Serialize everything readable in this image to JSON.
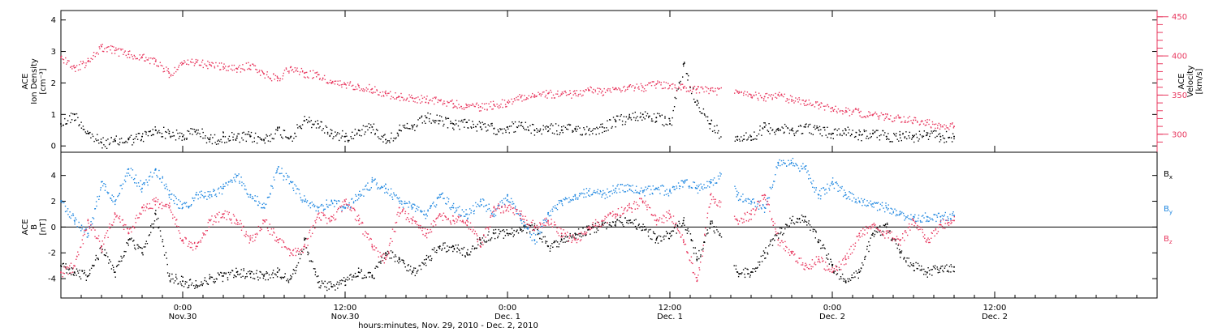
{
  "chart_data": [
    {
      "type": "scatter",
      "panel": "ion-density-velocity",
      "title": "",
      "ylabel_lines": [
        "ACE",
        "Ion Density",
        "[cm⁻³]"
      ],
      "ylim": [
        -0.2,
        4.3
      ],
      "yticks": [
        0,
        1,
        2,
        3,
        4
      ],
      "y2label_lines": [
        "ACE",
        "Velocity",
        "[km/s]"
      ],
      "y2lim": [
        277,
        458
      ],
      "y2ticks": [
        300,
        350,
        400,
        450
      ],
      "grid": false,
      "series": [
        {
          "name": "",
          "color": "#000000",
          "axis": "left",
          "x": [
            0,
            2,
            4,
            6,
            8,
            10,
            12,
            14,
            16,
            18,
            20,
            22,
            24,
            26,
            28,
            30,
            32,
            34,
            36,
            38,
            40,
            42,
            44,
            46,
            48,
            50,
            52,
            54,
            56,
            58,
            60,
            62,
            64,
            66,
            68,
            70,
            72,
            74,
            76,
            78,
            80,
            82,
            84,
            86,
            88,
            90,
            92,
            94,
            96,
            98,
            100,
            102,
            104,
            106,
            108,
            110,
            112,
            114,
            116,
            118,
            120,
            122,
            124,
            126,
            128,
            130,
            132
          ],
          "y": [
            0.7,
            1.0,
            0.4,
            0.1,
            0.15,
            0.2,
            0.3,
            0.5,
            0.4,
            0.3,
            0.5,
            0.2,
            0.3,
            0.25,
            0.3,
            0.2,
            0.5,
            0.3,
            0.8,
            0.7,
            0.4,
            0.3,
            0.5,
            0.6,
            0.2,
            0.5,
            0.6,
            0.9,
            0.8,
            0.7,
            0.75,
            0.6,
            0.55,
            0.6,
            0.65,
            0.5,
            0.6,
            0.5,
            0.55,
            0.5,
            0.6,
            0.8,
            0.9,
            1.0,
            0.9,
            0.7,
            2.6,
            1.3,
            0.7,
            0.3,
            0.3,
            0.3,
            0.6,
            0.55,
            0.5,
            0.6,
            0.5,
            0.4,
            0.5,
            0.35,
            0.4,
            0.3,
            0.35,
            0.3,
            0.35,
            0.3,
            0.3
          ]
        },
        {
          "name": "",
          "color": "#e8385f",
          "axis": "right",
          "x": [
            0,
            2,
            4,
            6,
            8,
            10,
            12,
            14,
            16,
            18,
            20,
            22,
            24,
            26,
            28,
            30,
            32,
            34,
            36,
            38,
            40,
            42,
            44,
            46,
            48,
            50,
            52,
            54,
            56,
            58,
            60,
            62,
            64,
            66,
            68,
            70,
            72,
            74,
            76,
            78,
            80,
            82,
            84,
            86,
            88,
            90,
            92,
            94,
            96,
            98,
            100,
            102,
            104,
            106,
            108,
            110,
            112,
            114,
            116,
            118,
            120,
            122,
            124,
            126,
            128,
            130,
            132
          ],
          "y": [
            398,
            385,
            393,
            412,
            407,
            402,
            398,
            393,
            378,
            390,
            392,
            389,
            386,
            384,
            388,
            377,
            372,
            386,
            378,
            376,
            365,
            364,
            362,
            358,
            352,
            348,
            346,
            345,
            343,
            339,
            337,
            335,
            338,
            341,
            348,
            350,
            352,
            351,
            352,
            357,
            355,
            359,
            361,
            360,
            364,
            362,
            360,
            358,
            356,
            355,
            354,
            350,
            348,
            350,
            344,
            342,
            337,
            334,
            330,
            328,
            325,
            322,
            321,
            318,
            315,
            312,
            310
          ]
        }
      ]
    },
    {
      "type": "scatter",
      "panel": "magnetic-field",
      "title": "",
      "ylabel_lines": [
        "ACE",
        "B",
        "[nT]"
      ],
      "ylim": [
        -5.5,
        5.8
      ],
      "yticks": [
        -4,
        -2,
        0,
        2,
        4
      ],
      "xlabel": "hours:minutes, Nov. 29, 2010 - Dec. 2, 2010",
      "xlim": [
        0,
        162
      ],
      "xticks": [
        {
          "x": 18,
          "labels": [
            "0:00",
            "Nov.30"
          ]
        },
        {
          "x": 42,
          "labels": [
            "12:00",
            "Nov.30"
          ]
        },
        {
          "x": 66,
          "labels": [
            "0:00",
            "Dec. 1"
          ]
        },
        {
          "x": 90,
          "labels": [
            "12:00",
            "Dec. 1"
          ]
        },
        {
          "x": 114,
          "labels": [
            "0:00",
            "Dec. 2"
          ]
        },
        {
          "x": 138,
          "labels": [
            "12:00",
            "Dec. 2"
          ]
        }
      ],
      "zero_line": true,
      "grid": false,
      "legend_position": "right",
      "series": [
        {
          "name": "B",
          "sub": "x",
          "color": "#000000",
          "x": [
            0,
            2,
            4,
            6,
            8,
            10,
            12,
            14,
            16,
            18,
            20,
            22,
            24,
            26,
            28,
            30,
            32,
            34,
            36,
            38,
            40,
            42,
            44,
            46,
            48,
            50,
            52,
            54,
            56,
            58,
            60,
            62,
            64,
            66,
            68,
            70,
            72,
            74,
            76,
            78,
            80,
            82,
            84,
            86,
            88,
            90,
            92,
            94,
            96,
            98,
            100,
            102,
            104,
            106,
            108,
            110,
            112,
            114,
            116,
            118,
            120,
            122,
            124,
            126,
            128,
            130,
            132
          ],
          "y": [
            -3.0,
            -3.5,
            -3.8,
            -1.5,
            -3.5,
            -1.0,
            -2.0,
            1.0,
            -3.8,
            -4.2,
            -4.5,
            -4.0,
            -3.8,
            -3.5,
            -3.6,
            -3.8,
            -3.5,
            -4.0,
            -1.0,
            -4.3,
            -4.6,
            -4.2,
            -3.5,
            -3.8,
            -2.0,
            -2.5,
            -3.5,
            -2.5,
            -1.5,
            -1.5,
            -2.0,
            -1.0,
            -0.5,
            -0.5,
            -0.2,
            0.0,
            -1.5,
            -1.0,
            -0.5,
            -0.2,
            0.2,
            0.4,
            0.5,
            0.0,
            -1.0,
            -0.5,
            0.5,
            -2.5,
            0.3,
            -1.0,
            -3.5,
            -3.5,
            -2.0,
            -0.5,
            0.5,
            0.8,
            -1.0,
            -3.0,
            -4.3,
            -3.5,
            -0.5,
            0.0,
            -2.0,
            -3.0,
            -3.5,
            -3.2,
            -3.1
          ]
        },
        {
          "name": "B",
          "sub": "y",
          "color": "#1f87e0",
          "x": [
            0,
            2,
            4,
            6,
            8,
            10,
            12,
            14,
            16,
            18,
            20,
            22,
            24,
            26,
            28,
            30,
            32,
            34,
            36,
            38,
            40,
            42,
            44,
            46,
            48,
            50,
            52,
            54,
            56,
            58,
            60,
            62,
            64,
            66,
            68,
            70,
            72,
            74,
            76,
            78,
            80,
            82,
            84,
            86,
            88,
            90,
            92,
            94,
            96,
            98,
            100,
            102,
            104,
            106,
            108,
            110,
            112,
            114,
            116,
            118,
            120,
            122,
            124,
            126,
            128,
            130,
            132
          ],
          "y": [
            2.0,
            0.5,
            -0.5,
            3.5,
            2.0,
            4.5,
            3.0,
            4.5,
            2.5,
            1.5,
            2.5,
            2.5,
            3.0,
            4.0,
            2.5,
            1.5,
            4.5,
            3.5,
            2.0,
            1.5,
            2.0,
            1.5,
            2.5,
            3.5,
            3.0,
            2.0,
            1.5,
            1.0,
            2.5,
            1.5,
            1.0,
            2.0,
            1.0,
            2.5,
            0.5,
            -1.0,
            1.0,
            2.0,
            2.5,
            2.8,
            2.5,
            3.0,
            3.2,
            2.8,
            3.0,
            2.8,
            3.5,
            3.0,
            3.5,
            4.2,
            2.5,
            2.0,
            1.5,
            5.0,
            5.0,
            4.5,
            2.5,
            3.5,
            2.5,
            2.0,
            1.8,
            1.5,
            1.0,
            0.8,
            0.8,
            0.8,
            0.9
          ]
        },
        {
          "name": "B",
          "sub": "z",
          "color": "#e8385f",
          "x": [
            0,
            2,
            4,
            6,
            8,
            10,
            12,
            14,
            16,
            18,
            20,
            22,
            24,
            26,
            28,
            30,
            32,
            34,
            36,
            38,
            40,
            42,
            44,
            46,
            48,
            50,
            52,
            54,
            56,
            58,
            60,
            62,
            64,
            66,
            68,
            70,
            72,
            74,
            76,
            78,
            80,
            82,
            84,
            86,
            88,
            90,
            92,
            94,
            96,
            98,
            100,
            102,
            104,
            106,
            108,
            110,
            112,
            114,
            116,
            118,
            120,
            122,
            124,
            126,
            128,
            130,
            132
          ],
          "y": [
            -3.5,
            -3.0,
            0.5,
            -1.5,
            1.0,
            -0.5,
            1.5,
            2.0,
            1.5,
            -1.0,
            -1.5,
            0.5,
            1.0,
            0.5,
            -1.0,
            0.5,
            -1.0,
            -2.0,
            -1.5,
            1.0,
            0.5,
            2.0,
            0.5,
            -1.5,
            -2.5,
            1.5,
            0.5,
            -0.5,
            1.0,
            0.5,
            0.5,
            -1.5,
            1.5,
            1.5,
            1.0,
            0.0,
            0.5,
            -0.5,
            -1.0,
            0.0,
            0.5,
            1.0,
            1.5,
            2.0,
            0.5,
            1.0,
            -1.0,
            -4.2,
            2.5,
            1.5,
            0.5,
            1.0,
            2.5,
            -1.0,
            -2.0,
            -3.0,
            -2.5,
            -3.5,
            -2.5,
            -0.5,
            0.0,
            -0.5,
            -1.0,
            0.5,
            -1.0,
            0.2,
            0.5
          ]
        }
      ]
    }
  ]
}
